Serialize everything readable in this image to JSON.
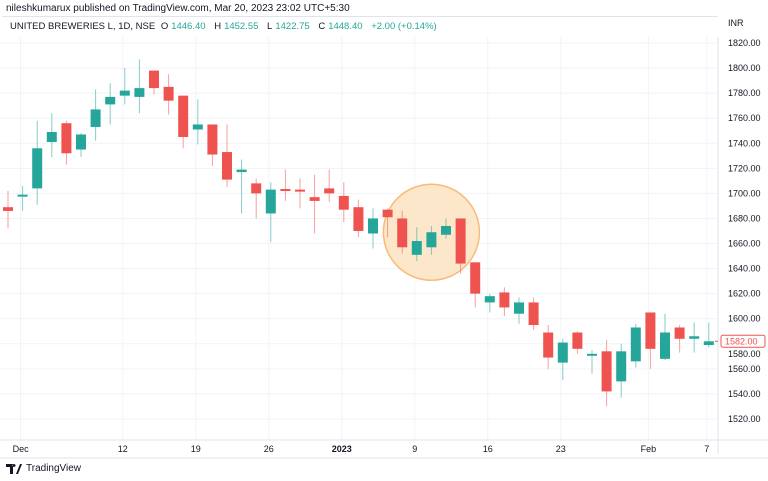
{
  "header": {
    "published": "nileshkumarux published on TradingView.com, Mar 20, 2023 23:02 UTC+5:30"
  },
  "legend": {
    "symbol": "UNITED BREWERIES L, 1D, NSE",
    "o_label": "O",
    "o": "1446.40",
    "h_label": "H",
    "h": "1452.55",
    "l_label": "L",
    "l": "1422.75",
    "c_label": "C",
    "c": "1448.40",
    "change": "+2.00 (+0.14%)"
  },
  "footer": {
    "brand": "TradingView"
  },
  "colors": {
    "up": "#26a69a",
    "down": "#ef5350",
    "highlight_fill": "#fde5c5",
    "highlight_stroke": "#f7b56a",
    "grid": "#f0f3fa"
  },
  "chart_data": {
    "type": "candlestick",
    "currency": "INR",
    "ylim": [
      1510,
      1830
    ],
    "yticks": [
      1520,
      1540,
      1560,
      1580,
      1600,
      1620,
      1640,
      1660,
      1680,
      1700,
      1720,
      1740,
      1760,
      1780,
      1800,
      1820
    ],
    "ytick_labels": [
      "1520.00",
      "1540.00",
      "1560.00",
      "1580.00",
      "1600.00",
      "1620.00",
      "1640.00",
      "1660.00",
      "1680.00",
      "1700.00",
      "1720.00",
      "1740.00",
      "1760.00",
      "1780.00",
      "1800.00",
      "1820.00"
    ],
    "last_price_label": "1582.00",
    "xticks": [
      {
        "label": "Dec",
        "candle": 1
      },
      {
        "label": "12",
        "candle": 8
      },
      {
        "label": "19",
        "candle": 13
      },
      {
        "label": "26",
        "candle": 18
      },
      {
        "label": "2023",
        "candle": 23,
        "bold": true
      },
      {
        "label": "9",
        "candle": 28
      },
      {
        "label": "16",
        "candle": 33
      },
      {
        "label": "23",
        "candle": 38
      },
      {
        "label": "Feb",
        "candle": 44
      },
      {
        "label": "7",
        "candle": 48
      }
    ],
    "highlight": {
      "shape": "circle",
      "candles": [
        27,
        31
      ],
      "price_center": 1669
    },
    "ohlc": [
      [
        1689,
        1702,
        1672,
        1686
      ],
      [
        1698,
        1706,
        1686,
        1699
      ],
      [
        1704,
        1758,
        1691,
        1736
      ],
      [
        1741,
        1764,
        1729,
        1749
      ],
      [
        1756,
        1758,
        1723,
        1732
      ],
      [
        1735,
        1748,
        1729,
        1747
      ],
      [
        1753,
        1783,
        1742,
        1767
      ],
      [
        1771,
        1788,
        1755,
        1777
      ],
      [
        1778,
        1800,
        1771,
        1782
      ],
      [
        1777,
        1807,
        1764,
        1784
      ],
      [
        1798,
        1798,
        1779,
        1784
      ],
      [
        1785,
        1795,
        1763,
        1774
      ],
      [
        1778,
        1778,
        1736,
        1745
      ],
      [
        1751,
        1775,
        1739,
        1755
      ],
      [
        1755,
        1755,
        1722,
        1731
      ],
      [
        1733,
        1755,
        1705,
        1711
      ],
      [
        1717,
        1727,
        1684,
        1719
      ],
      [
        1708,
        1712,
        1680,
        1700
      ],
      [
        1684,
        1709,
        1661,
        1703
      ],
      [
        1703.5,
        1719,
        1694,
        1703
      ],
      [
        1703,
        1712,
        1688,
        1702
      ],
      [
        1697,
        1715,
        1668,
        1694
      ],
      [
        1704,
        1719,
        1693,
        1700
      ],
      [
        1698,
        1709,
        1677,
        1687
      ],
      [
        1689,
        1695,
        1665,
        1670
      ],
      [
        1668,
        1688,
        1656,
        1680
      ],
      [
        1687,
        1688,
        1665,
        1681
      ],
      [
        1680,
        1686,
        1652,
        1657
      ],
      [
        1651,
        1673,
        1646,
        1662
      ],
      [
        1657,
        1674,
        1651,
        1669
      ],
      [
        1667,
        1680,
        1664,
        1674
      ],
      [
        1680,
        1680,
        1636,
        1644
      ],
      [
        1645,
        1645,
        1609,
        1620
      ],
      [
        1613,
        1620,
        1605,
        1618
      ],
      [
        1621,
        1625,
        1602,
        1609
      ],
      [
        1604,
        1617,
        1596,
        1613
      ],
      [
        1613,
        1617,
        1591,
        1595
      ],
      [
        1589,
        1595,
        1560,
        1569
      ],
      [
        1565,
        1584,
        1551,
        1581
      ],
      [
        1589,
        1590,
        1572,
        1576
      ],
      [
        1571,
        1575,
        1556,
        1572
      ],
      [
        1574,
        1583,
        1530,
        1542
      ],
      [
        1550,
        1580,
        1537,
        1574
      ],
      [
        1566,
        1596,
        1561,
        1593
      ],
      [
        1605,
        1605,
        1560,
        1576
      ],
      [
        1568,
        1604,
        1567,
        1589
      ],
      [
        1593,
        1595,
        1573,
        1584
      ],
      [
        1584,
        1597,
        1573,
        1586
      ],
      [
        1579,
        1597,
        1577,
        1582
      ]
    ]
  }
}
